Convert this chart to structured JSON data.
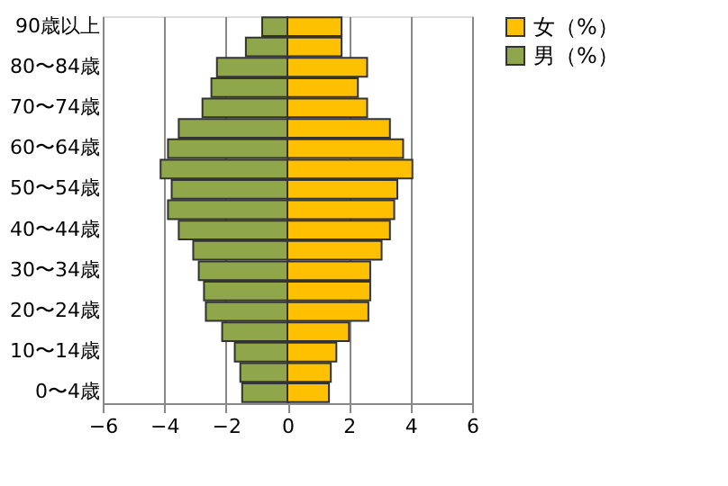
{
  "chart_data": {
    "type": "bar",
    "orientation": "horizontal",
    "categories": [
      "90歳以上",
      null,
      "80〜84歳",
      null,
      "70〜74歳",
      null,
      "60〜64歳",
      null,
      "50〜54歳",
      null,
      "40〜44歳",
      null,
      "30〜34歳",
      null,
      "20〜24歳",
      null,
      "10〜14歳",
      null,
      "0〜4歳"
    ],
    "series": [
      {
        "name": "女（%）",
        "color": "#ffc000",
        "values": [
          1.76,
          1.76,
          2.59,
          2.29,
          2.59,
          3.33,
          3.76,
          4.06,
          3.57,
          3.47,
          3.33,
          3.06,
          2.69,
          2.69,
          2.63,
          2.0,
          1.59,
          1.41,
          1.35
        ]
      },
      {
        "name": "男（%）",
        "color": "#8fa64a",
        "values": [
          -0.82,
          -1.35,
          -2.29,
          -2.47,
          -2.76,
          -3.53,
          -3.88,
          -4.12,
          -3.76,
          -3.88,
          -3.53,
          -3.06,
          -2.88,
          -2.71,
          -2.65,
          -2.12,
          -1.71,
          -1.53,
          -1.47
        ]
      }
    ],
    "stacked": true,
    "xlim": [
      -6,
      6
    ],
    "xticks": [
      -6,
      -4,
      -2,
      0,
      2,
      4,
      6
    ],
    "grid": "x",
    "legend": "right"
  }
}
